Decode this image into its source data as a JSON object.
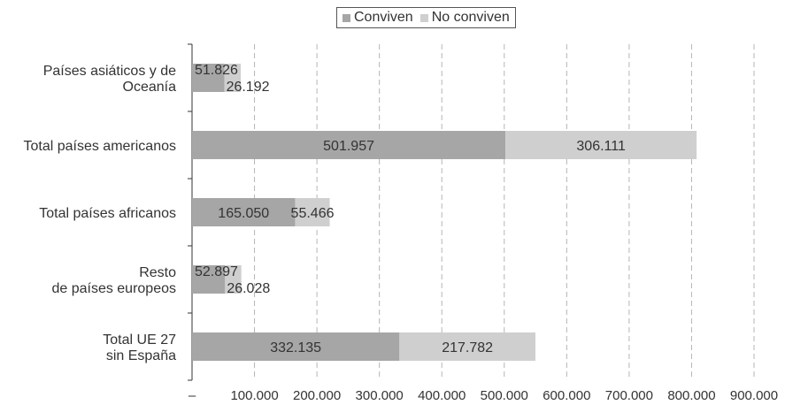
{
  "chart_data": {
    "type": "bar",
    "orientation": "horizontal",
    "stacked": true,
    "categories": [
      "Países asiáticos y de\nOceanía",
      "Total países americanos",
      "Total países africanos",
      "Resto\nde países europeos",
      "Total UE 27\nsin España"
    ],
    "series": [
      {
        "name": "Conviven",
        "values": [
          51826,
          501957,
          165050,
          52897,
          332135
        ],
        "labels": [
          "51.826",
          "501.957",
          "165.050",
          "52.897",
          "332.135"
        ],
        "color": "#a6a6a6"
      },
      {
        "name": "No conviven",
        "values": [
          26192,
          306111,
          55466,
          26028,
          217782
        ],
        "labels": [
          "26.192",
          "306.111",
          "55.466",
          "26.028",
          "217.782"
        ],
        "color": "#cfcfcf"
      }
    ],
    "xlim": [
      0,
      900000
    ],
    "xticks": [
      0,
      100000,
      200000,
      300000,
      400000,
      500000,
      600000,
      700000,
      800000,
      900000
    ],
    "xtick_labels": [
      "–",
      "100.000",
      "200.000",
      "300.000",
      "400.000",
      "500.000",
      "600.000",
      "700.000",
      "800.000",
      "900.000"
    ],
    "grid": "vertical dashed",
    "legend_position": "top-center"
  }
}
